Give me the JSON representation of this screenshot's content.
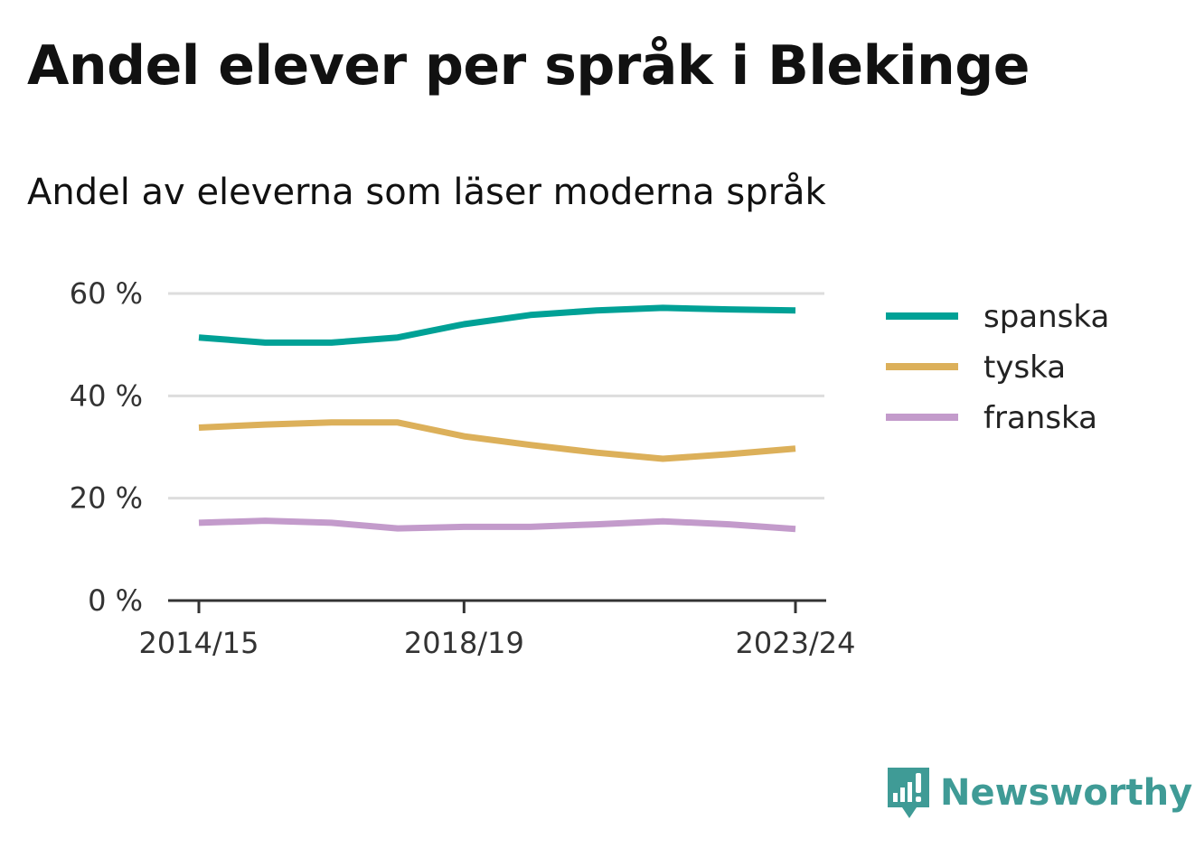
{
  "title": "Andel elever per språk i Blekinge",
  "subtitle": "Andel av eleverna som läser moderna språk",
  "brand": {
    "name": "Newsworthy",
    "icon": "newsworthy-logo-icon",
    "color": "#3f9b96"
  },
  "chart_data": {
    "type": "line",
    "title": "Andel elever per språk i Blekinge",
    "subtitle": "Andel av eleverna som läser moderna språk",
    "x": [
      "2014/15",
      "2015/16",
      "2016/17",
      "2017/18",
      "2018/19",
      "2019/20",
      "2020/21",
      "2021/22",
      "2022/23",
      "2023/24"
    ],
    "x_tick_labels": [
      "2014/15",
      "2018/19",
      "2023/24"
    ],
    "y_ticks": [
      0,
      20,
      40,
      60
    ],
    "y_tick_labels": [
      "0 %",
      "20 %",
      "40 %",
      "60 %"
    ],
    "ylim": [
      0,
      60
    ],
    "grid": true,
    "legend_position": "right",
    "series": [
      {
        "name": "spanska",
        "color": "#00a196",
        "values": [
          51.4,
          50.4,
          50.4,
          51.4,
          54.0,
          55.8,
          56.7,
          57.2,
          56.9,
          56.7
        ]
      },
      {
        "name": "tyska",
        "color": "#dcb05a",
        "values": [
          33.8,
          34.4,
          34.8,
          34.8,
          32.1,
          30.4,
          28.9,
          27.7,
          28.6,
          29.7
        ]
      },
      {
        "name": "franska",
        "color": "#c39bcb",
        "values": [
          15.2,
          15.6,
          15.2,
          14.1,
          14.4,
          14.4,
          14.9,
          15.5,
          14.9,
          14.0
        ]
      }
    ]
  }
}
